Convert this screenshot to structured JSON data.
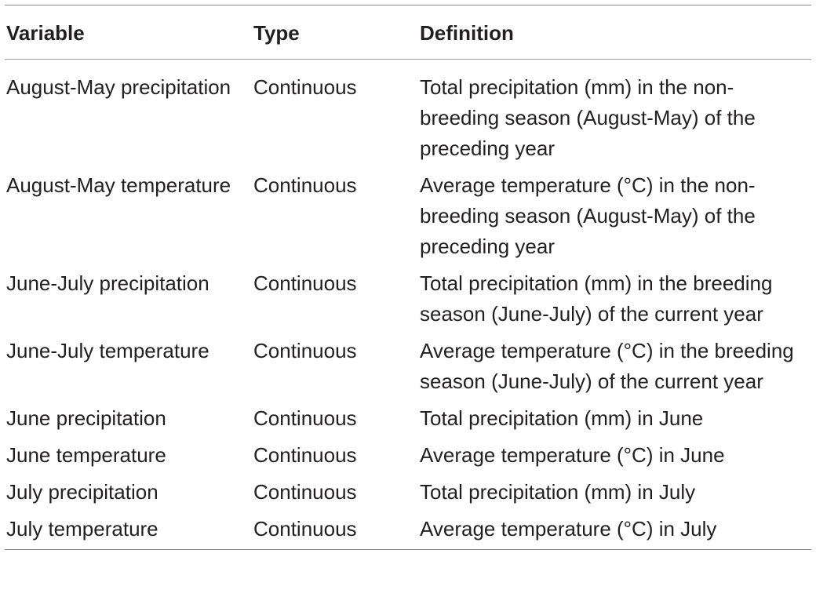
{
  "table": {
    "headers": {
      "variable": "Variable",
      "type": "Type",
      "definition": "Definition"
    },
    "rows": [
      {
        "variable": "August-May precipitation",
        "type": "Continuous",
        "definition": "Total precipitation (mm) in the non-breeding season (August-May) of the preceding year"
      },
      {
        "variable": "August-May temperature",
        "type": "Continuous",
        "definition": "Average temperature (°C) in the non-breeding season (August-May) of the preceding year"
      },
      {
        "variable": "June-July precipitation",
        "type": "Continuous",
        "definition": "Total precipitation (mm) in the breeding season (June-July) of the current year"
      },
      {
        "variable": "June-July temperature",
        "type": "Continuous",
        "definition": "Average temperature (°C) in the breeding season (June-July) of the current year"
      },
      {
        "variable": "June precipitation",
        "type": "Continuous",
        "definition": "Total precipitation (mm) in June"
      },
      {
        "variable": "June temperature",
        "type": "Continuous",
        "definition": "Average temperature (°C) in June"
      },
      {
        "variable": "July precipitation",
        "type": "Continuous",
        "definition": "Total precipitation (mm) in July"
      },
      {
        "variable": "July temperature",
        "type": "Continuous",
        "definition": "Average temperature (°C) in July"
      }
    ]
  }
}
